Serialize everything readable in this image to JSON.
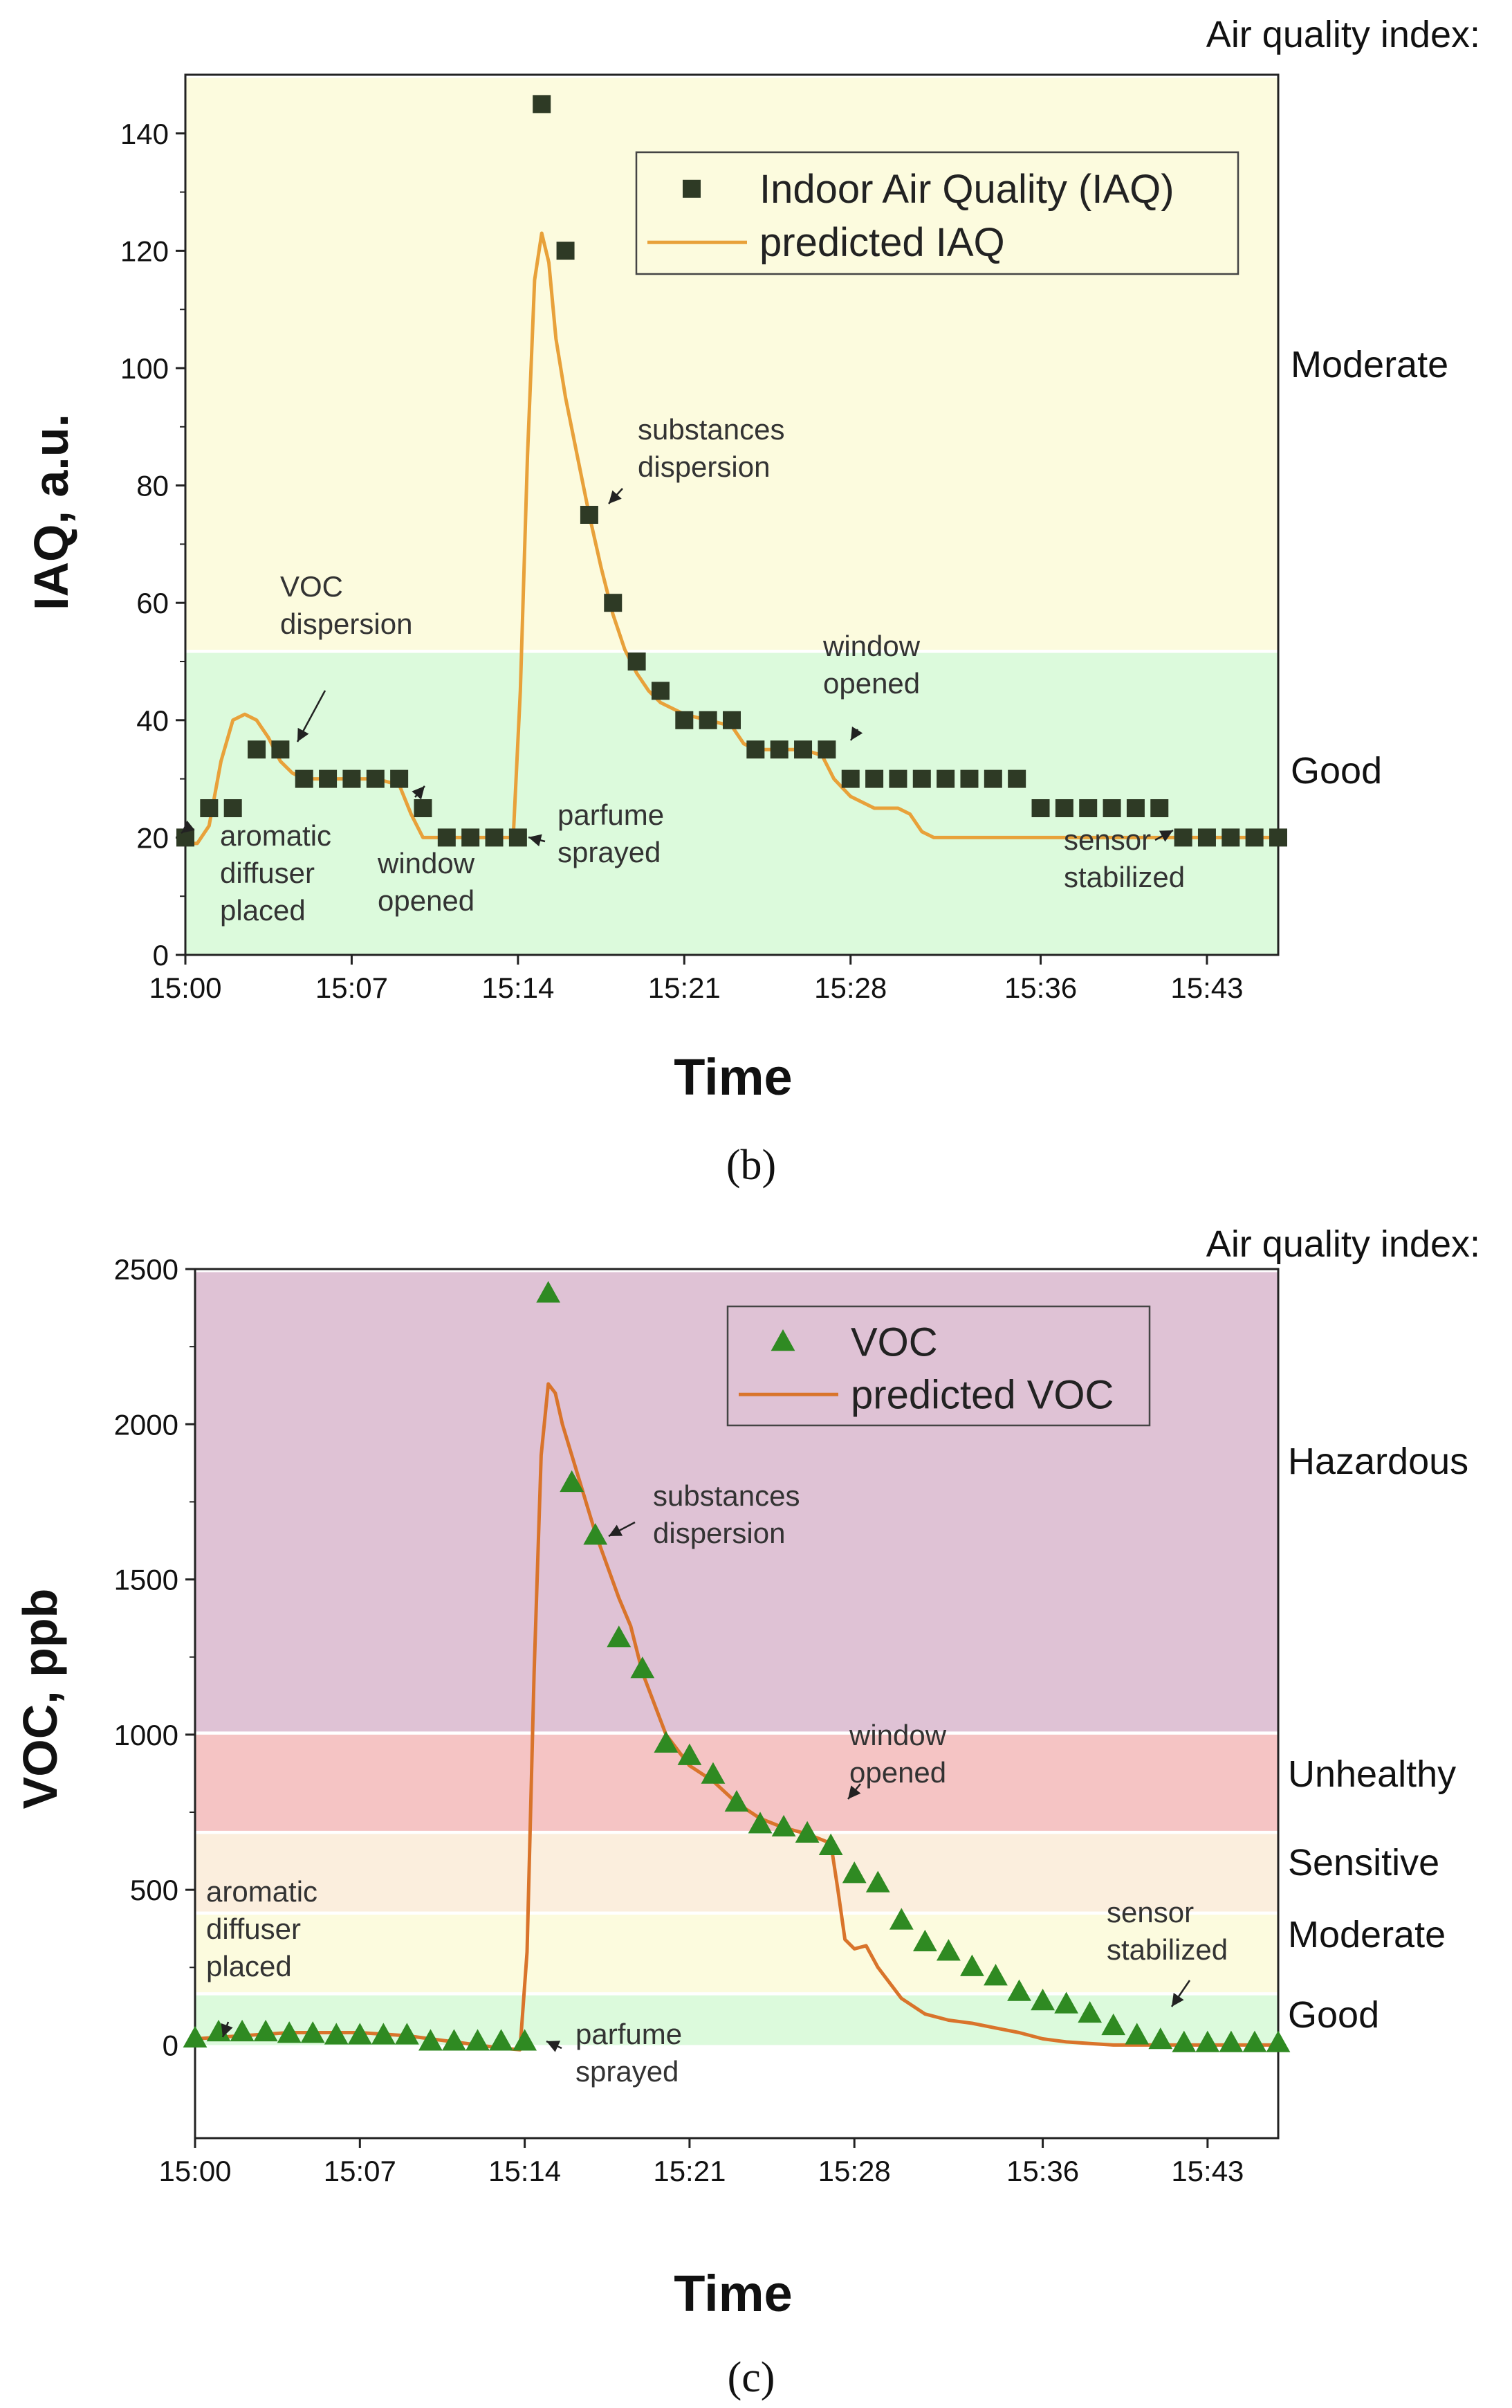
{
  "chart_data": [
    {
      "type": "scatter",
      "panel_label": "(b)",
      "header": "Air quality index:",
      "xlabel": "Time",
      "ylabel": "IAQ, a.u.",
      "ylim": [
        0,
        150
      ],
      "yticks": [
        0,
        20,
        40,
        60,
        80,
        100,
        120,
        140
      ],
      "xlim": [
        0,
        46
      ],
      "xticks": [
        0,
        7,
        14,
        21,
        28,
        36,
        43
      ],
      "xtick_labels": [
        "15:00",
        "15:07",
        "15:14",
        "15:21",
        "15:28",
        "15:36",
        "15:43"
      ],
      "bands": [
        {
          "label": "Good",
          "from": 0,
          "to": 52,
          "color": "#dcfadc"
        },
        {
          "label": "Moderate",
          "from": 52,
          "to": 150,
          "color": "#fcfbde"
        }
      ],
      "legend": [
        {
          "name": "Indoor Air Quality (IAQ)",
          "marker": "square",
          "color": "#2e3a25"
        },
        {
          "name": "predicted IAQ",
          "marker": "line",
          "color": "#e8a13a"
        }
      ],
      "series": [
        {
          "name": "Indoor Air Quality (IAQ)",
          "x": [
            0,
            1,
            2,
            3,
            4,
            5,
            6,
            7,
            8,
            9,
            10,
            11,
            12,
            13,
            14,
            15,
            16,
            17,
            18,
            19,
            20,
            21,
            22,
            23,
            24,
            25,
            26,
            27,
            28,
            29,
            30,
            31,
            32,
            33,
            34,
            35,
            36,
            37,
            38,
            39,
            40,
            41,
            42,
            43,
            44,
            45,
            46
          ],
          "y": [
            20,
            25,
            25,
            35,
            35,
            30,
            30,
            30,
            30,
            30,
            25,
            20,
            20,
            20,
            20,
            145,
            120,
            75,
            60,
            50,
            45,
            40,
            40,
            40,
            35,
            35,
            35,
            35,
            30,
            30,
            30,
            30,
            30,
            30,
            30,
            30,
            25,
            25,
            25,
            25,
            25,
            25,
            20,
            20,
            20,
            20,
            20
          ]
        },
        {
          "name": "predicted IAQ",
          "x": [
            0,
            0.5,
            1,
            1.5,
            2,
            2.5,
            3,
            3.5,
            4,
            4.5,
            5,
            6,
            7,
            8,
            9,
            9.5,
            10,
            11,
            12,
            13,
            13.8,
            14.1,
            14.4,
            14.7,
            15,
            15.3,
            15.6,
            16,
            16.5,
            17,
            17.5,
            18,
            18.5,
            19,
            19.5,
            20,
            21,
            22,
            23,
            23.5,
            24,
            25,
            26,
            26.8,
            27.3,
            28,
            29,
            30,
            30.5,
            31,
            31.5,
            32,
            33,
            34,
            36,
            38,
            40,
            42,
            44,
            46
          ],
          "y": [
            19,
            19,
            22,
            33,
            40,
            41,
            40,
            37,
            33,
            31,
            30,
            30,
            30,
            30,
            29,
            24,
            20,
            20,
            20,
            20,
            20,
            45,
            85,
            115,
            123,
            118,
            105,
            95,
            85,
            75,
            66,
            58,
            52,
            48,
            45,
            43,
            41,
            40,
            39,
            36,
            35,
            35,
            35,
            34,
            30,
            27,
            25,
            25,
            24,
            21,
            20,
            20,
            20,
            20,
            20,
            20,
            20,
            20,
            20,
            20
          ]
        }
      ],
      "annotations": [
        {
          "lines": [
            "aromatic",
            "diffuser",
            "placed"
          ]
        },
        {
          "lines": [
            "VOC",
            "dispersion"
          ]
        },
        {
          "lines": [
            "window",
            "opened"
          ]
        },
        {
          "lines": [
            "parfume",
            "sprayed"
          ]
        },
        {
          "lines": [
            "substances",
            "dispersion"
          ]
        },
        {
          "lines": [
            "window",
            "opened"
          ]
        },
        {
          "lines": [
            "sensor",
            "stabilized"
          ]
        }
      ]
    },
    {
      "type": "scatter",
      "panel_label": "(c)",
      "header": "Air quality index:",
      "xlabel": "Time",
      "ylabel": "VOC, ppb",
      "ylim": [
        -300,
        2500
      ],
      "yticks": [
        0,
        500,
        1000,
        1500,
        2000,
        2500
      ],
      "xlim": [
        0,
        46
      ],
      "xticks": [
        0,
        7,
        14,
        21,
        28,
        36,
        43
      ],
      "xtick_labels": [
        "15:00",
        "15:07",
        "15:14",
        "15:21",
        "15:28",
        "15:36",
        "15:43"
      ],
      "bands": [
        {
          "label": "Good",
          "from": 0,
          "to": 170,
          "color": "#dcfadc"
        },
        {
          "label": "Moderate",
          "from": 170,
          "to": 430,
          "color": "#fcfbde"
        },
        {
          "label": "Sensitive",
          "from": 430,
          "to": 690,
          "color": "#fbeedd"
        },
        {
          "label": "Unhealthy",
          "from": 690,
          "to": 1010,
          "color": "#f5c4c4"
        },
        {
          "label": "Hazardous",
          "from": 1010,
          "to": 2500,
          "color": "#dfc2d5"
        }
      ],
      "legend": [
        {
          "name": "VOC",
          "marker": "triangle",
          "color": "#2f8a22"
        },
        {
          "name": "predicted VOC",
          "marker": "line",
          "color": "#d9742b"
        }
      ],
      "series": [
        {
          "name": "VOC",
          "x": [
            0,
            1,
            2,
            3,
            4,
            5,
            6,
            7,
            8,
            9,
            10,
            11,
            12,
            13,
            14,
            15,
            16,
            17,
            18,
            19,
            20,
            21,
            22,
            23,
            24,
            25,
            26,
            27,
            28,
            29,
            30,
            31,
            32,
            33,
            34,
            35,
            36,
            37,
            38,
            39,
            40,
            41,
            42,
            43,
            44,
            45,
            46
          ],
          "y": [
            20,
            40,
            40,
            40,
            35,
            35,
            30,
            30,
            30,
            30,
            10,
            10,
            10,
            10,
            10,
            2420,
            1810,
            1640,
            1310,
            1210,
            970,
            930,
            870,
            780,
            710,
            700,
            680,
            640,
            550,
            520,
            400,
            330,
            300,
            250,
            220,
            170,
            140,
            130,
            100,
            60,
            30,
            15,
            5,
            5,
            5,
            5,
            5
          ]
        },
        {
          "name": "predicted VOC",
          "x": [
            0,
            1,
            2,
            3,
            4,
            5,
            6,
            7,
            8,
            9,
            10,
            11,
            12,
            13,
            13.8,
            14.1,
            14.4,
            14.7,
            15,
            15.3,
            15.6,
            16,
            17,
            18,
            18.5,
            19,
            20,
            21,
            22,
            23,
            24,
            25,
            26,
            27,
            27.3,
            27.6,
            28,
            28.5,
            29,
            30,
            31,
            32,
            33,
            34,
            35,
            36,
            37,
            38,
            39,
            40,
            42,
            44,
            46
          ],
          "y": [
            20,
            25,
            30,
            35,
            40,
            40,
            40,
            40,
            35,
            30,
            20,
            10,
            0,
            -10,
            -15,
            300,
            1200,
            1900,
            2130,
            2100,
            2000,
            1900,
            1650,
            1440,
            1350,
            1200,
            1000,
            900,
            850,
            780,
            730,
            700,
            680,
            650,
            500,
            340,
            310,
            320,
            250,
            150,
            100,
            80,
            70,
            55,
            40,
            20,
            10,
            5,
            0,
            0,
            0,
            0,
            0
          ]
        }
      ],
      "annotations": [
        {
          "lines": [
            "aromatic",
            "diffuser",
            "placed"
          ]
        },
        {
          "lines": [
            "substances",
            "dispersion"
          ]
        },
        {
          "lines": [
            "parfume",
            "sprayed"
          ]
        },
        {
          "lines": [
            "window",
            "opened"
          ]
        },
        {
          "lines": [
            "sensor",
            "stabilized"
          ]
        }
      ]
    }
  ]
}
